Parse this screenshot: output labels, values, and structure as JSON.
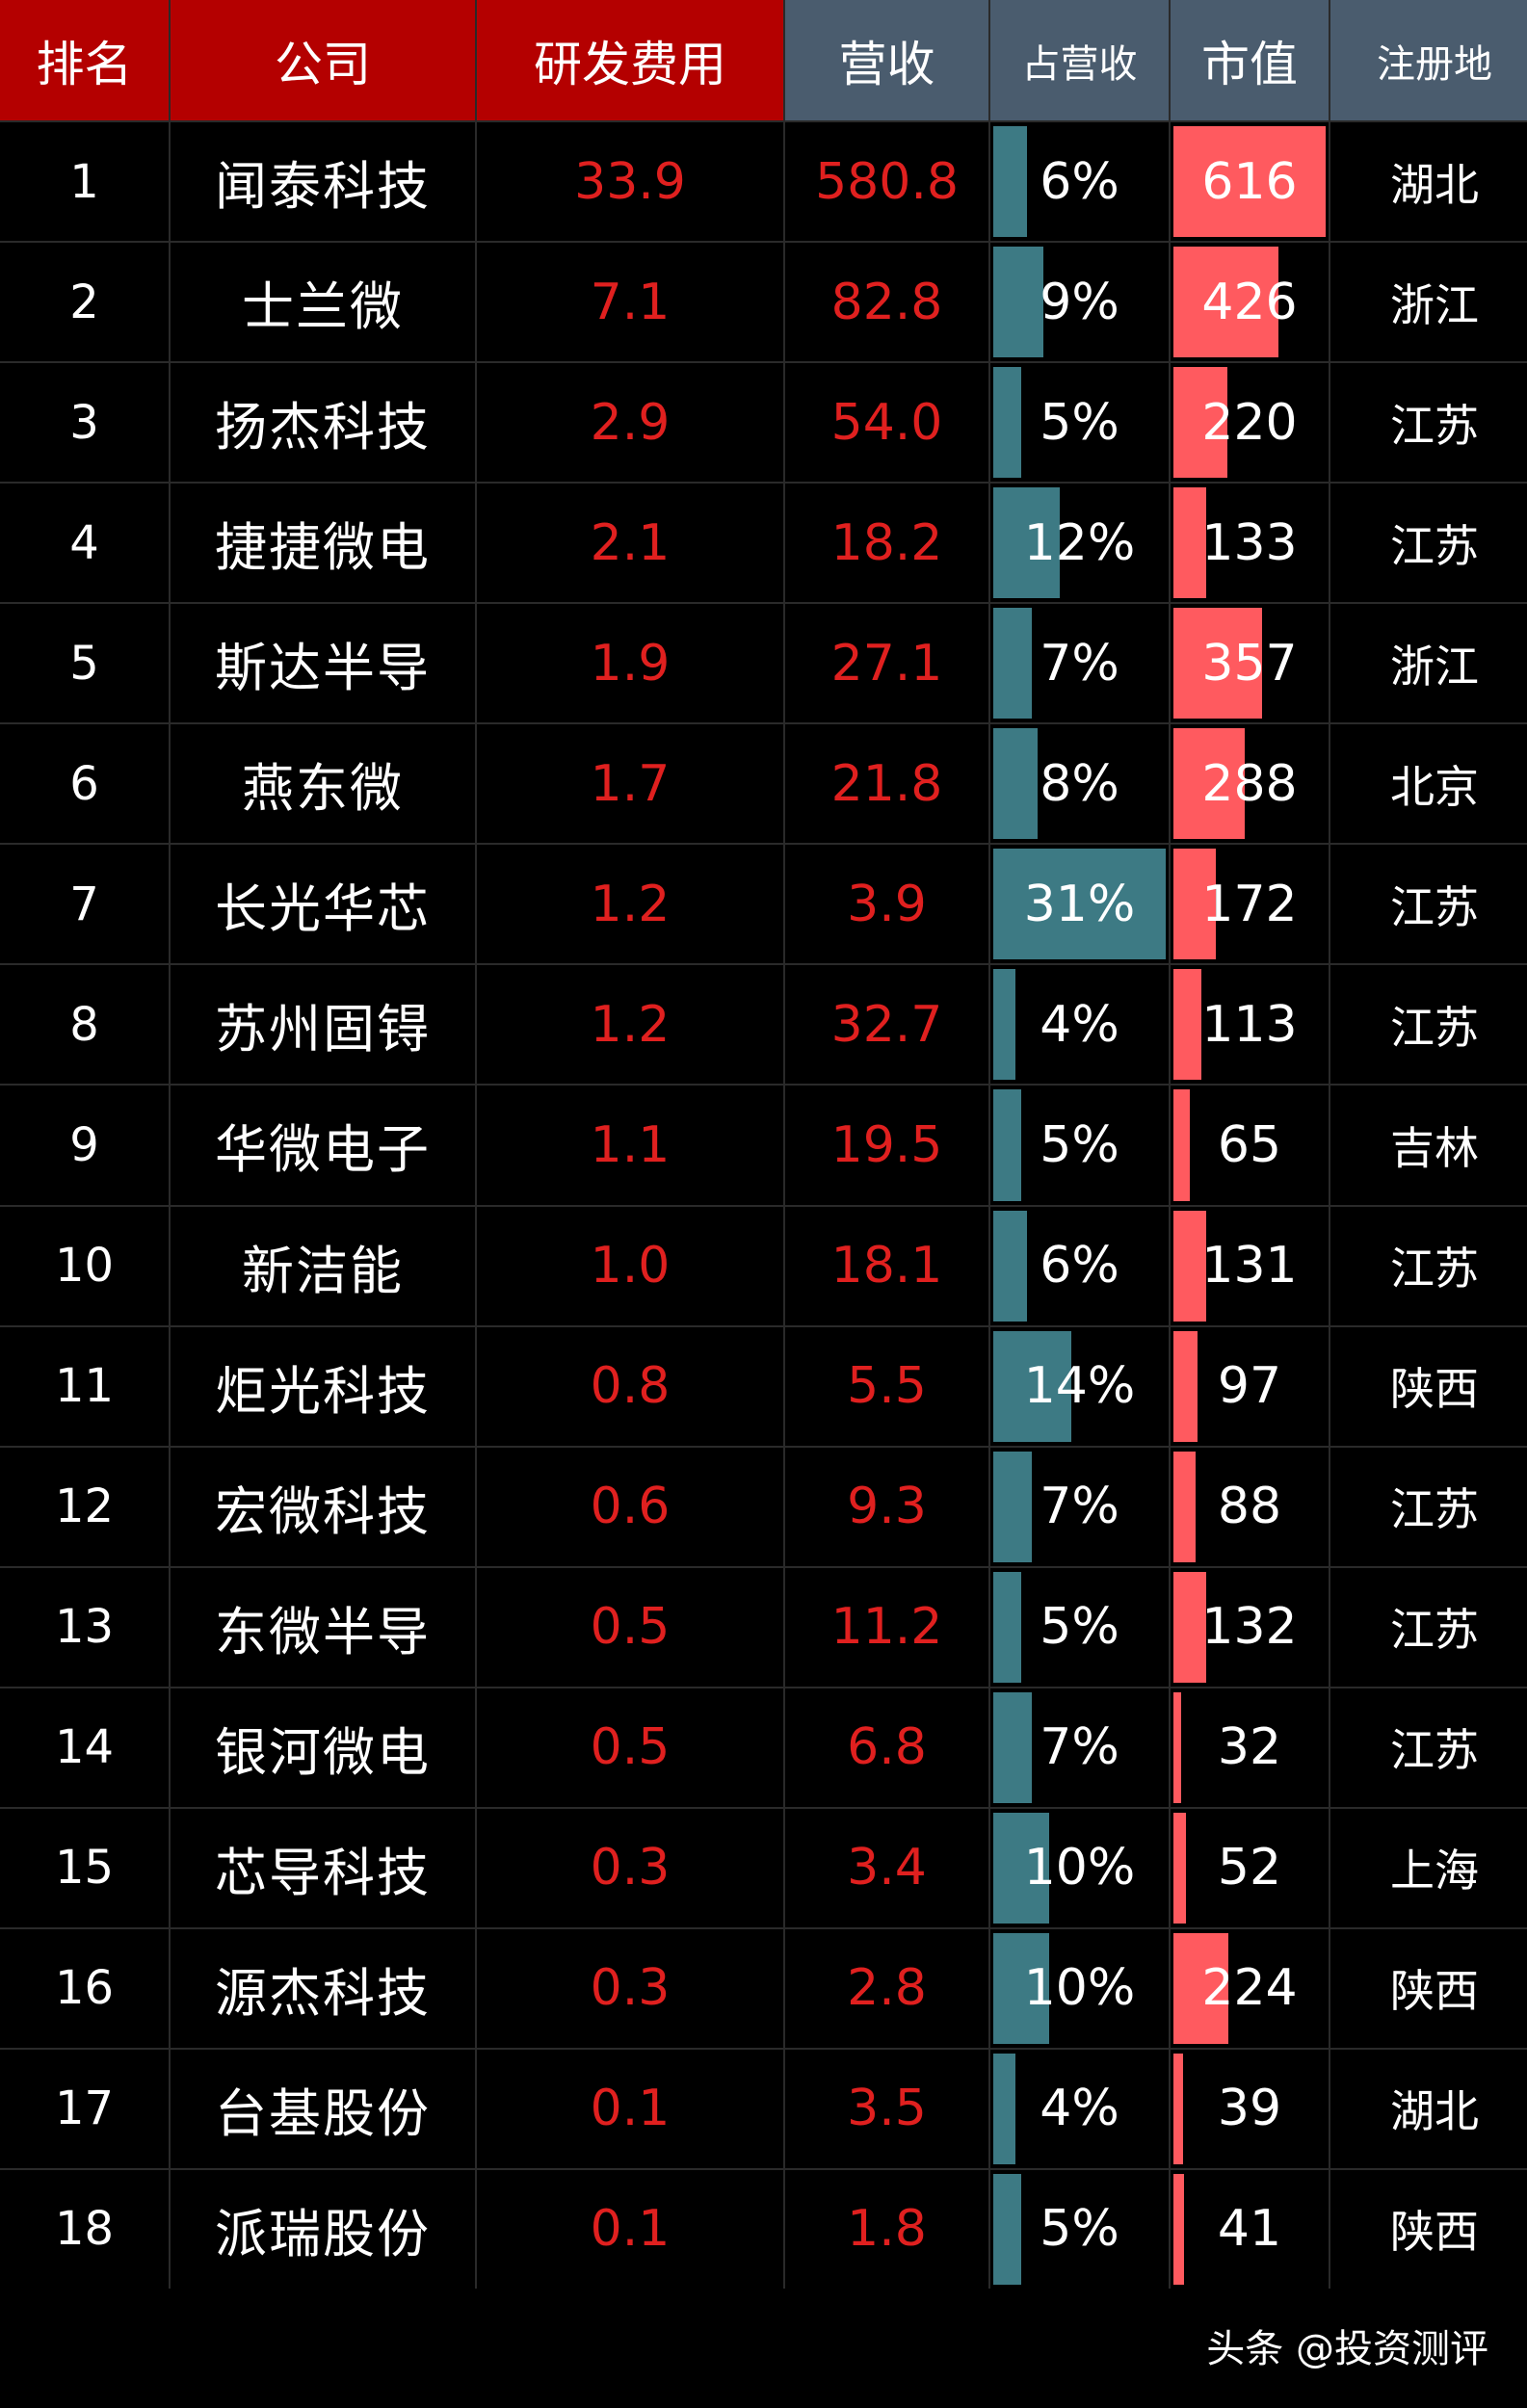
{
  "chart_data": {
    "type": "table",
    "columns": [
      "排名",
      "公司",
      "研发费用",
      "营收",
      "占营收",
      "市值",
      "注册地"
    ],
    "rows": [
      {
        "rank": "1",
        "company": "闻泰科技",
        "rd": "33.9",
        "revenue": "580.8",
        "ratio_label": "6%",
        "ratio": 6,
        "mcap": 616,
        "region": "湖北"
      },
      {
        "rank": "2",
        "company": "士兰微",
        "rd": "7.1",
        "revenue": "82.8",
        "ratio_label": "9%",
        "ratio": 9,
        "mcap": 426,
        "region": "浙江"
      },
      {
        "rank": "3",
        "company": "扬杰科技",
        "rd": "2.9",
        "revenue": "54.0",
        "ratio_label": "5%",
        "ratio": 5,
        "mcap": 220,
        "region": "江苏"
      },
      {
        "rank": "4",
        "company": "捷捷微电",
        "rd": "2.1",
        "revenue": "18.2",
        "ratio_label": "12%",
        "ratio": 12,
        "mcap": 133,
        "region": "江苏"
      },
      {
        "rank": "5",
        "company": "斯达半导",
        "rd": "1.9",
        "revenue": "27.1",
        "ratio_label": "7%",
        "ratio": 7,
        "mcap": 357,
        "region": "浙江"
      },
      {
        "rank": "6",
        "company": "燕东微",
        "rd": "1.7",
        "revenue": "21.8",
        "ratio_label": "8%",
        "ratio": 8,
        "mcap": 288,
        "region": "北京"
      },
      {
        "rank": "7",
        "company": "长光华芯",
        "rd": "1.2",
        "revenue": "3.9",
        "ratio_label": "31%",
        "ratio": 31,
        "mcap": 172,
        "region": "江苏"
      },
      {
        "rank": "8",
        "company": "苏州固锝",
        "rd": "1.2",
        "revenue": "32.7",
        "ratio_label": "4%",
        "ratio": 4,
        "mcap": 113,
        "region": "江苏"
      },
      {
        "rank": "9",
        "company": "华微电子",
        "rd": "1.1",
        "revenue": "19.5",
        "ratio_label": "5%",
        "ratio": 5,
        "mcap": 65,
        "region": "吉林"
      },
      {
        "rank": "10",
        "company": "新洁能",
        "rd": "1.0",
        "revenue": "18.1",
        "ratio_label": "6%",
        "ratio": 6,
        "mcap": 131,
        "region": "江苏"
      },
      {
        "rank": "11",
        "company": "炬光科技",
        "rd": "0.8",
        "revenue": "5.5",
        "ratio_label": "14%",
        "ratio": 14,
        "mcap": 97,
        "region": "陕西"
      },
      {
        "rank": "12",
        "company": "宏微科技",
        "rd": "0.6",
        "revenue": "9.3",
        "ratio_label": "7%",
        "ratio": 7,
        "mcap": 88,
        "region": "江苏"
      },
      {
        "rank": "13",
        "company": "东微半导",
        "rd": "0.5",
        "revenue": "11.2",
        "ratio_label": "5%",
        "ratio": 5,
        "mcap": 132,
        "region": "江苏"
      },
      {
        "rank": "14",
        "company": "银河微电",
        "rd": "0.5",
        "revenue": "6.8",
        "ratio_label": "7%",
        "ratio": 7,
        "mcap": 32,
        "region": "江苏"
      },
      {
        "rank": "15",
        "company": "芯导科技",
        "rd": "0.3",
        "revenue": "3.4",
        "ratio_label": "10%",
        "ratio": 10,
        "mcap": 52,
        "region": "上海"
      },
      {
        "rank": "16",
        "company": "源杰科技",
        "rd": "0.3",
        "revenue": "2.8",
        "ratio_label": "10%",
        "ratio": 10,
        "mcap": 224,
        "region": "陕西"
      },
      {
        "rank": "17",
        "company": "台基股份",
        "rd": "0.1",
        "revenue": "3.5",
        "ratio_label": "4%",
        "ratio": 4,
        "mcap": 39,
        "region": "湖北"
      },
      {
        "rank": "18",
        "company": "派瑞股份",
        "rd": "0.1",
        "revenue": "1.8",
        "ratio_label": "5%",
        "ratio": 5,
        "mcap": 41,
        "region": "陕西"
      }
    ],
    "ratio_scale_max": 31,
    "mcap_scale_max": 616,
    "colors": {
      "header_red": "#b40000",
      "header_slate": "#4a5c6e",
      "value_red": "#e0201f",
      "ratio_bar": "#3d7a84",
      "mcap_bar": "#ff5a5f"
    }
  },
  "watermark": "头条 @投资测评"
}
